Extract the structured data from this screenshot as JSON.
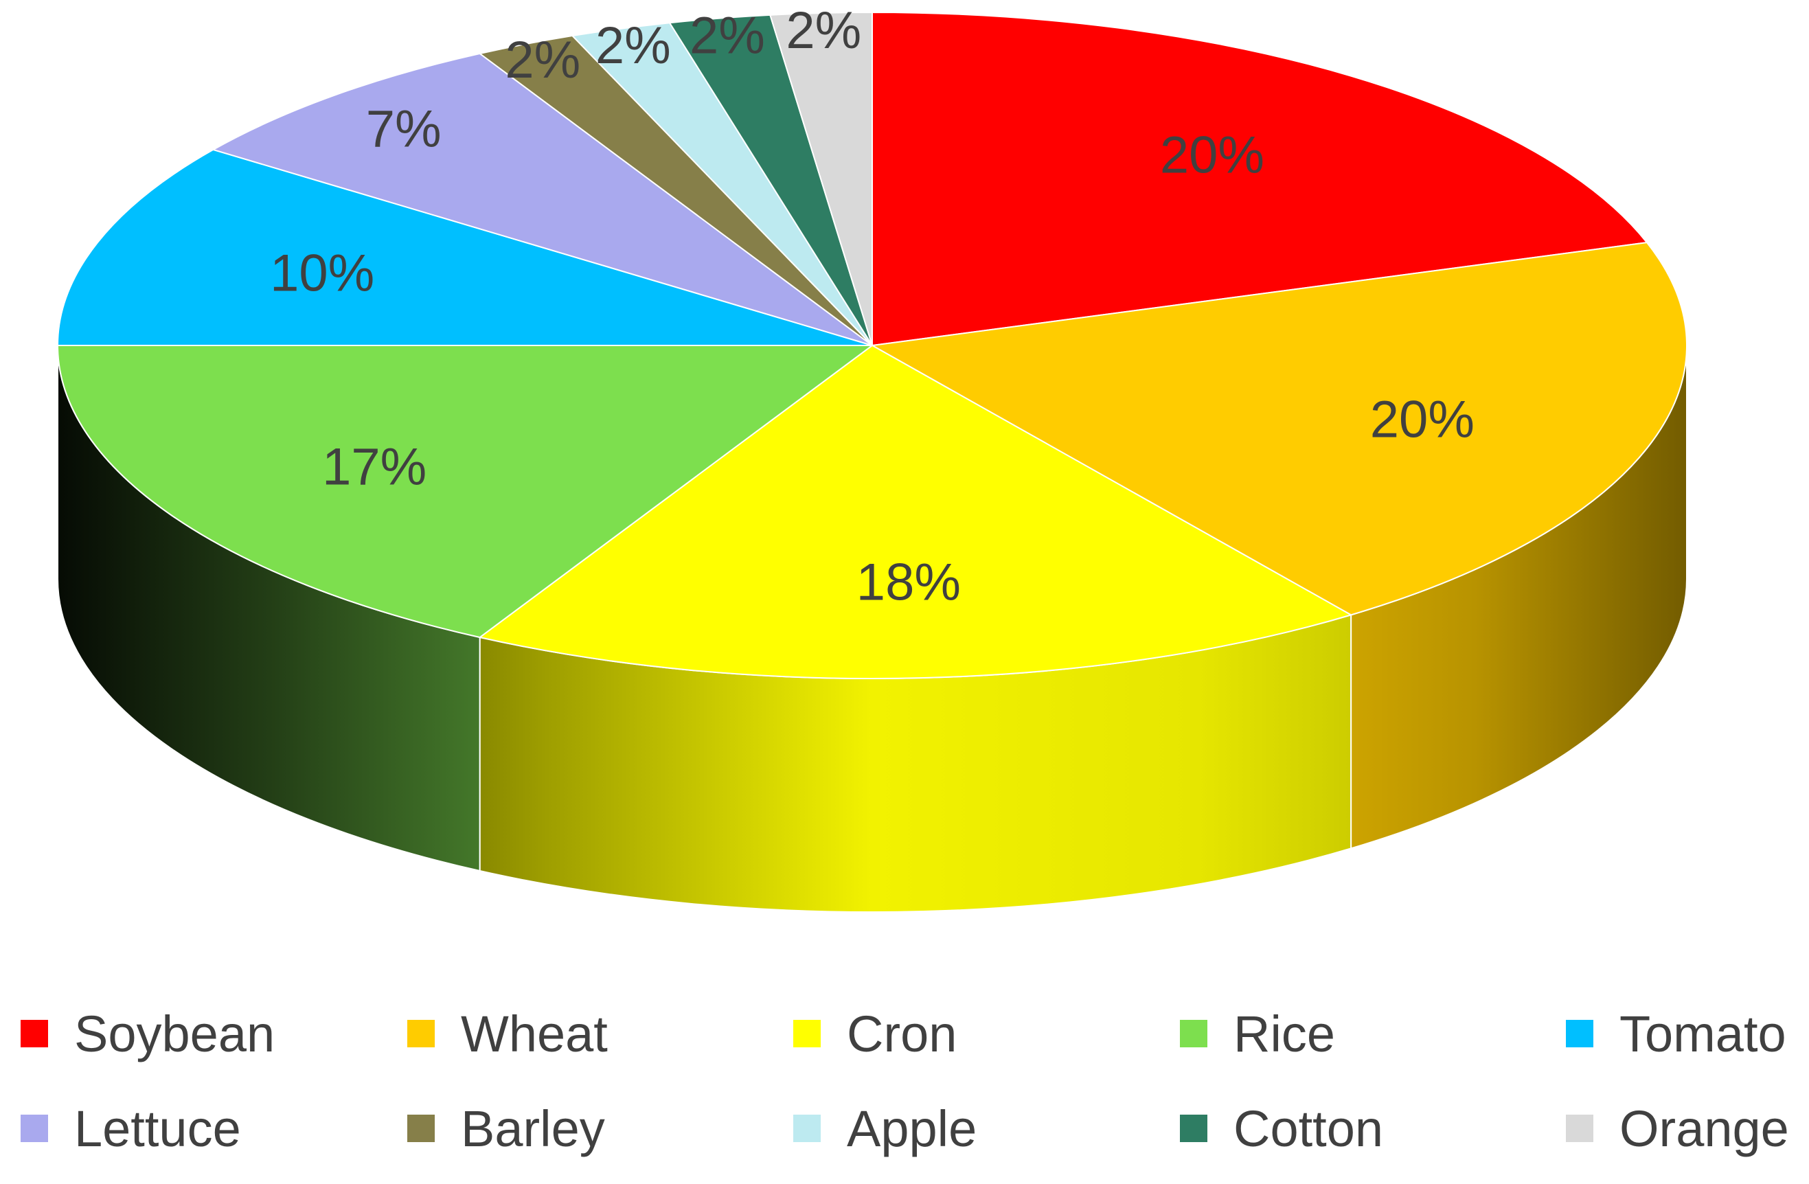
{
  "chart_data": {
    "type": "pie",
    "style": "3d",
    "start_angle": "12 o'clock",
    "direction": "clockwise",
    "legend_position": "bottom",
    "title": "",
    "slices": [
      {
        "label": "Soybean",
        "value": 20,
        "value_label": "20%",
        "color": "#ff0000"
      },
      {
        "label": "Wheat",
        "value": 20,
        "value_label": "20%",
        "color": "#ffcc00"
      },
      {
        "label": "Cron",
        "value": 18,
        "value_label": "18%",
        "color": "#ffff00"
      },
      {
        "label": "Rice",
        "value": 17,
        "value_label": "17%",
        "color": "#7ddf4e"
      },
      {
        "label": "Tomato",
        "value": 10,
        "value_label": "10%",
        "color": "#00bfff"
      },
      {
        "label": "Lettuce",
        "value": 7,
        "value_label": "7%",
        "color": "#a9a9ee"
      },
      {
        "label": "Barley",
        "value": 2,
        "value_label": "2%",
        "color": "#867f49"
      },
      {
        "label": "Apple",
        "value": 2,
        "value_label": "2%",
        "color": "#bdeaf0"
      },
      {
        "label": "Cotton",
        "value": 2,
        "value_label": "2%",
        "color": "#2e7d63"
      },
      {
        "label": "Orange",
        "value": 2,
        "value_label": "2%",
        "color": "#d9d9d9"
      }
    ]
  }
}
